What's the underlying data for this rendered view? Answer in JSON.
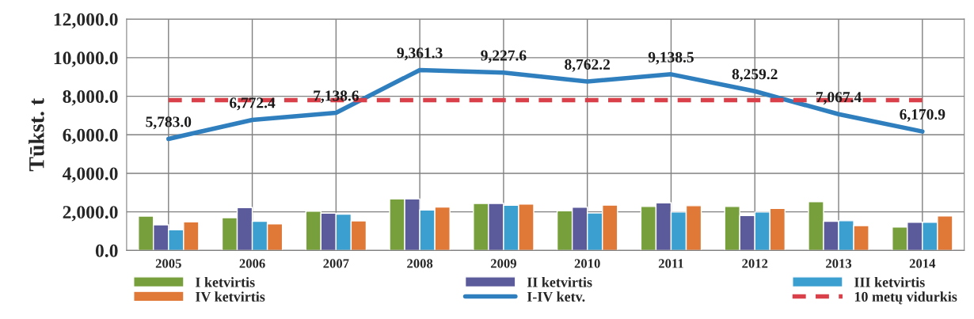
{
  "chart_data": {
    "type": "bar",
    "ylabel": "Tūkst. t",
    "categories": [
      "2005",
      "2006",
      "2007",
      "2008",
      "2009",
      "2010",
      "2011",
      "2012",
      "2013",
      "2014"
    ],
    "series": [
      {
        "name": "I ketvirtis",
        "color": "#77a03c",
        "values": [
          1780,
          1700,
          2030,
          2670,
          2440,
          2060,
          2280,
          2280,
          2530,
          1210
        ]
      },
      {
        "name": "II ketvirtis",
        "color": "#5b5a9a",
        "values": [
          1330,
          2220,
          1930,
          2670,
          2440,
          2240,
          2470,
          1810,
          1510,
          1460
        ]
      },
      {
        "name": "III ketvirtis",
        "color": "#3ba0d0",
        "values": [
          1070,
          1510,
          1880,
          2100,
          2340,
          1940,
          1990,
          1990,
          1540,
          1460
        ]
      },
      {
        "name": "IV ketvirtis",
        "color": "#e07838",
        "values": [
          1480,
          1380,
          1530,
          2250,
          2400,
          2350,
          2320,
          2180,
          1290,
          1790
        ]
      },
      {
        "name": "I-IV ketv.",
        "type": "line",
        "color": "#2f7fbf",
        "line_style": "solid",
        "values": [
          5783.0,
          6772.4,
          7138.6,
          9361.3,
          9227.6,
          8762.2,
          9138.5,
          8259.2,
          7067.4,
          6170.9
        ],
        "value_labels": [
          "5,783.0",
          "6,772.4",
          "7,138.6",
          "9,361.3",
          "9,227.6",
          "8,762.2",
          "9,138.5",
          "8,259.2",
          "7,067.4",
          "6,170.9"
        ]
      },
      {
        "name": "10 metų vidurkis",
        "type": "line",
        "color": "#d9404a",
        "line_style": "dashed",
        "values": [
          7800,
          7800,
          7800,
          7800,
          7800,
          7800,
          7800,
          7800,
          7800,
          7800
        ]
      }
    ],
    "ylim": [
      0,
      12000
    ],
    "yticks": [
      {
        "value": 0,
        "label": "0.0"
      },
      {
        "value": 2000,
        "label": "2,000.0"
      },
      {
        "value": 4000,
        "label": "4,000.0"
      },
      {
        "value": 6000,
        "label": "6,000.0"
      },
      {
        "value": 8000,
        "label": "8,000.0"
      },
      {
        "value": 10000,
        "label": "10,000.0"
      },
      {
        "value": 12000,
        "label": "12,000.0"
      }
    ],
    "grid": true,
    "legend": "bottom"
  }
}
